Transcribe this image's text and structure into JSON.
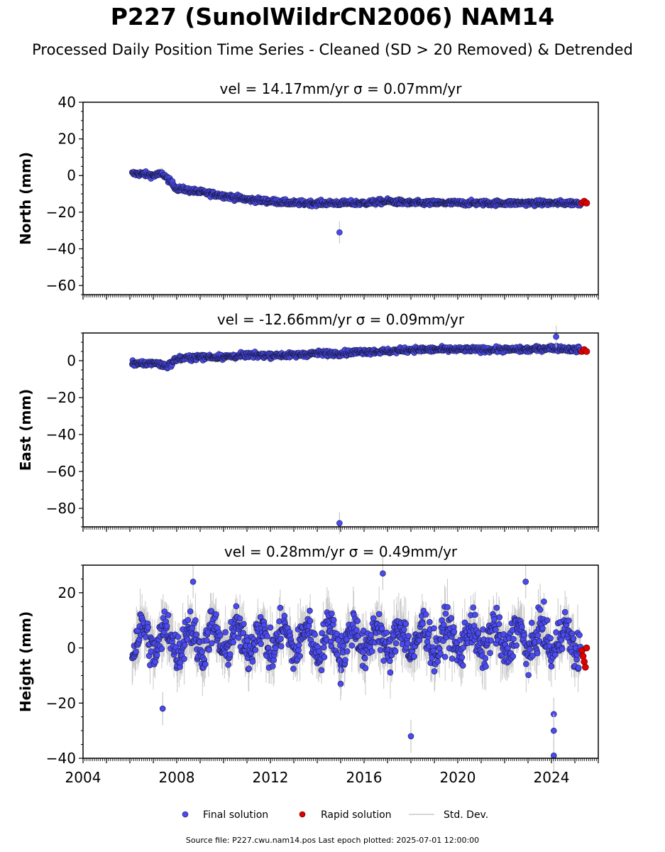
{
  "header": {
    "title": "P227 (SunolWildrCN2006) NAM14",
    "subtitle": "Processed Daily Position Time Series - Cleaned (SD > 20 Removed) & Detrended"
  },
  "footer": {
    "source": "Source file: P227.cwu.nam14.pos  Last epoch plotted: 2025-07-01 12:00:00"
  },
  "chart_data": [
    {
      "type": "scatter",
      "title": "vel = 14.17mm/yr   σ = 0.07mm/yr",
      "ylabel": "North (mm)",
      "xlim": [
        2004,
        2026
      ],
      "ylim": [
        -65,
        40
      ],
      "yticks": [
        -60,
        -40,
        -20,
        0,
        20,
        40
      ],
      "xticks": [
        2004,
        2008,
        2012,
        2016,
        2020,
        2024
      ],
      "series": [
        {
          "name": "Final solution",
          "color": "#4a4af0",
          "x": [
            2006.1,
            2006.5,
            2007.0,
            2007.4,
            2007.7,
            2008.0,
            2008.5,
            2009.0,
            2010.0,
            2011.0,
            2012.0,
            2013.0,
            2014.0,
            2015.0,
            2016.0,
            2017.0,
            2018.0,
            2019.0,
            2020.0,
            2021.0,
            2022.0,
            2023.0,
            2024.0,
            2025.0
          ],
          "y": [
            1,
            1,
            0,
            1,
            -3,
            -7,
            -8,
            -9,
            -11,
            -13,
            -14,
            -15,
            -15,
            -15,
            -15,
            -14,
            -15,
            -15,
            -15,
            -15,
            -15,
            -15,
            -15,
            -15
          ]
        },
        {
          "name": "Rapid solution",
          "color": "#e00000",
          "x": [
            2025.3,
            2025.4,
            2025.5
          ],
          "y": [
            -15,
            -14,
            -15
          ]
        }
      ],
      "outliers": [
        {
          "x": 2014.95,
          "y": -31
        }
      ]
    },
    {
      "type": "scatter",
      "title": "vel = -12.66mm/yr   σ = 0.09mm/yr",
      "ylabel": "East (mm)",
      "xlim": [
        2004,
        2026
      ],
      "ylim": [
        -90,
        15
      ],
      "yticks": [
        -80,
        -60,
        -40,
        -20,
        0
      ],
      "xticks": [
        2004,
        2008,
        2012,
        2016,
        2020,
        2024
      ],
      "series": [
        {
          "name": "Final solution",
          "color": "#4a4af0",
          "x": [
            2006.1,
            2006.5,
            2007.0,
            2007.6,
            2008.0,
            2009.0,
            2010.0,
            2011.0,
            2012.0,
            2013.0,
            2014.0,
            2015.0,
            2016.0,
            2017.0,
            2018.0,
            2019.0,
            2020.0,
            2021.0,
            2022.0,
            2023.0,
            2024.0,
            2025.0
          ],
          "y": [
            -1,
            -2,
            -1,
            -3,
            1,
            2,
            2,
            3,
            3,
            3,
            4,
            4,
            5,
            5,
            6,
            6,
            6,
            6,
            6,
            6,
            7,
            6
          ]
        },
        {
          "name": "Rapid solution",
          "color": "#e00000",
          "x": [
            2025.3,
            2025.4,
            2025.5
          ],
          "y": [
            5,
            6,
            5
          ]
        }
      ],
      "outliers": [
        {
          "x": 2014.95,
          "y": -88
        },
        {
          "x": 2024.2,
          "y": 13
        }
      ]
    },
    {
      "type": "scatter",
      "title": "vel = 0.28mm/yr   σ = 0.49mm/yr",
      "ylabel": "Height (mm)",
      "xlim": [
        2004,
        2026
      ],
      "ylim": [
        -40,
        30
      ],
      "yticks": [
        -40,
        -20,
        0,
        20
      ],
      "xticks": [
        2004,
        2008,
        2012,
        2016,
        2020,
        2024
      ],
      "series": [
        {
          "name": "Final solution",
          "color": "#4a4af0",
          "x": [
            2006.1,
            2006.5,
            2007.0,
            2007.5,
            2008.0,
            2008.5,
            2009.0,
            2009.5,
            2010.0,
            2010.5,
            2011.0,
            2011.5,
            2012.0,
            2012.5,
            2013.0,
            2013.5,
            2014.0,
            2014.5,
            2015.0,
            2015.5,
            2016.0,
            2016.5,
            2017.0,
            2017.5,
            2018.0,
            2018.5,
            2019.0,
            2019.5,
            2020.0,
            2020.5,
            2021.0,
            2021.5,
            2022.0,
            2022.5,
            2023.0,
            2023.5,
            2024.0,
            2024.5,
            2025.0
          ],
          "y": [
            0,
            8,
            -2,
            7,
            -4,
            8,
            -3,
            9,
            -2,
            8,
            -5,
            7,
            -4,
            8,
            -3,
            10,
            -1,
            9,
            -5,
            8,
            -4,
            9,
            -6,
            7,
            -5,
            6,
            -7,
            8,
            -3,
            9,
            -2,
            8,
            -4,
            9,
            -2,
            8,
            -5,
            6,
            -8
          ]
        },
        {
          "name": "Rapid solution",
          "color": "#e00000",
          "x": [
            2025.3,
            2025.35,
            2025.4,
            2025.45,
            2025.5
          ],
          "y": [
            -1,
            -3,
            -5,
            -7,
            0
          ]
        }
      ],
      "outliers": [
        {
          "x": 2007.4,
          "y": -22
        },
        {
          "x": 2015.0,
          "y": -13
        },
        {
          "x": 2018.0,
          "y": -32
        },
        {
          "x": 2024.1,
          "y": -24
        },
        {
          "x": 2024.1,
          "y": -30
        },
        {
          "x": 2024.1,
          "y": -39
        },
        {
          "x": 2016.8,
          "y": 27
        },
        {
          "x": 2008.7,
          "y": 24
        },
        {
          "x": 2022.9,
          "y": 24
        }
      ]
    }
  ],
  "legend": {
    "final_label": "Final solution",
    "rapid_label": "Rapid solution",
    "std_label": "Std. Dev.",
    "final_color": "#4a4af0",
    "rapid_color": "#e00000",
    "std_color": "#c8c8c8"
  }
}
